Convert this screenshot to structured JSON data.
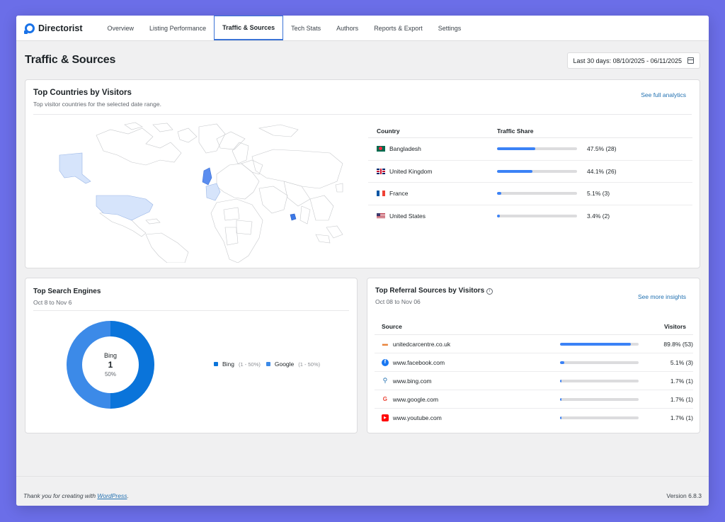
{
  "nav": {
    "brand": "Directorist",
    "items": [
      {
        "label": "Overview",
        "active": false
      },
      {
        "label": "Listing Performance",
        "active": false
      },
      {
        "label": "Traffic & Sources",
        "active": true
      },
      {
        "label": "Tech Stats",
        "active": false
      },
      {
        "label": "Authors",
        "active": false
      },
      {
        "label": "Reports & Export",
        "active": false
      },
      {
        "label": "Settings",
        "active": false
      }
    ]
  },
  "page": {
    "title": "Traffic & Sources",
    "date_range": "Last 30 days:  08/10/2025 - 06/11/2025"
  },
  "countries": {
    "title": "Top Countries by Visitors",
    "subtitle": "Top visitor countries for the selected date range.",
    "link": "See full analytics",
    "col_country": "Country",
    "col_share": "Traffic Share",
    "rows": [
      {
        "flag": "flag-bd",
        "name": "Bangladesh",
        "share": 47.5,
        "label": "47.5% (28)"
      },
      {
        "flag": "flag-gb",
        "name": "United Kingdom",
        "share": 44.1,
        "label": "44.1% (26)"
      },
      {
        "flag": "flag-fr",
        "name": "France",
        "share": 5.1,
        "label": "5.1% (3)"
      },
      {
        "flag": "flag-us",
        "name": "United States",
        "share": 3.4,
        "label": "3.4% (2)"
      }
    ]
  },
  "search": {
    "title": "Top Search Engines",
    "subtitle": "Oct 8 to Nov 6",
    "center_name": "Bing",
    "center_value": "1",
    "center_pct": "50%",
    "legend": [
      {
        "name": "Bing",
        "meta": "(1 - 50%)",
        "color": "#0a74da",
        "value": 1
      },
      {
        "name": "Google",
        "meta": "(1 - 50%)",
        "color": "#3c8ae8",
        "value": 1
      }
    ]
  },
  "referral": {
    "title": "Top Referral Sources by Visitors",
    "subtitle": "Oct 08 to Nov 06",
    "link": "See more insights",
    "col_source": "Source",
    "col_visitors": "Visitors",
    "rows": [
      {
        "icon": "unitedcarcentre-icon",
        "color": "#e8833a",
        "name": "unitedcarcentre.co.uk",
        "share": 89.8,
        "label": "89.8% (53)"
      },
      {
        "icon": "facebook-icon",
        "color": "#1877f2",
        "name": "www.facebook.com",
        "share": 5.1,
        "label": "5.1% (3)"
      },
      {
        "icon": "bing-search-icon",
        "color": "#2271b1",
        "name": "www.bing.com",
        "share": 1.7,
        "label": "1.7% (1)"
      },
      {
        "icon": "google-icon",
        "color": "#ea4335",
        "name": "www.google.com",
        "share": 1.7,
        "label": "1.7% (1)"
      },
      {
        "icon": "youtube-icon",
        "color": "#ff0000",
        "name": "www.youtube.com",
        "share": 1.7,
        "label": "1.7% (1)"
      }
    ]
  },
  "footer": {
    "thanks_prefix": "Thank you for creating with ",
    "thanks_link": "WordPress",
    "thanks_suffix": ".",
    "version": "Version 6.8.3"
  }
}
